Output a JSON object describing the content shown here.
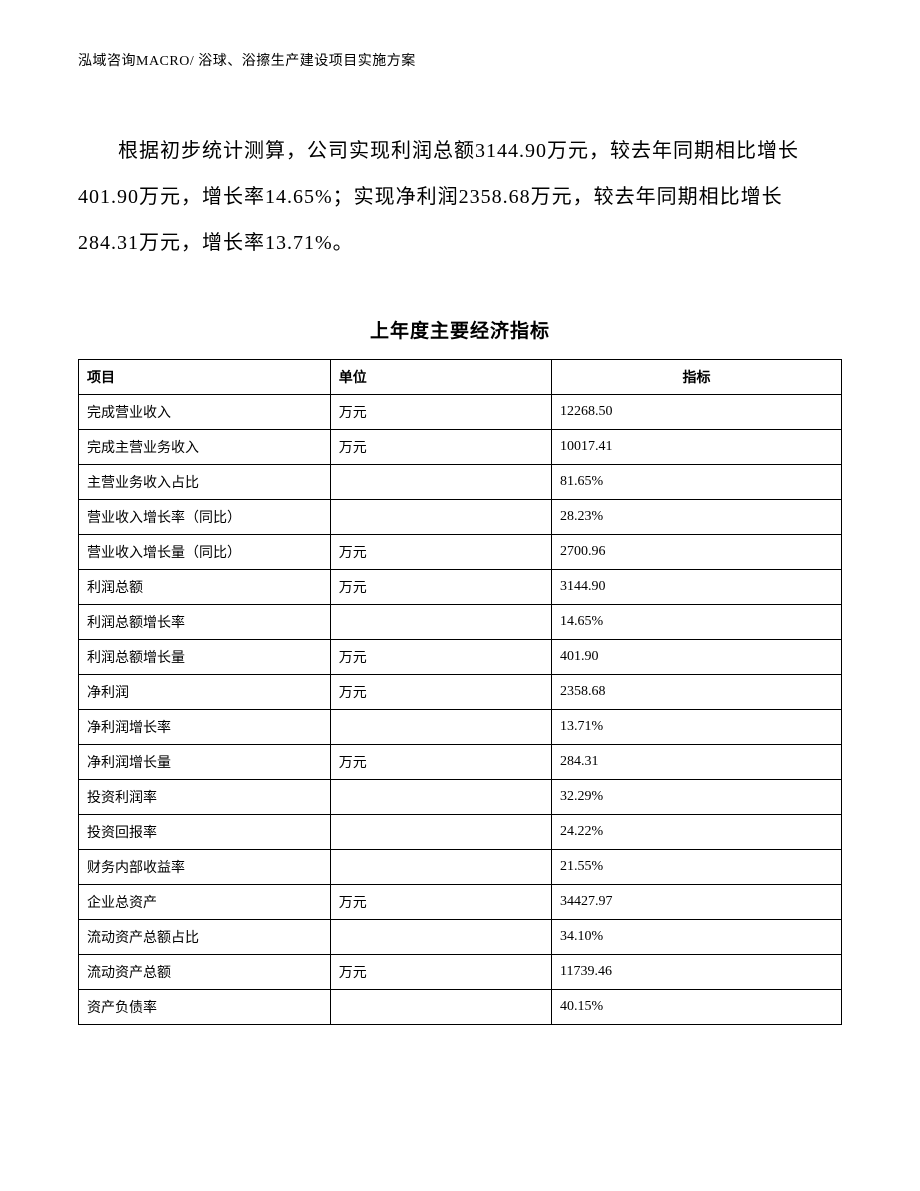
{
  "header": {
    "text": "泓域咨询MACRO/ 浴球、浴擦生产建设项目实施方案"
  },
  "paragraph": {
    "text": "根据初步统计测算，公司实现利润总额3144.90万元，较去年同期相比增长401.90万元，增长率14.65%；实现净利润2358.68万元，较去年同期相比增长284.31万元，增长率13.71%。"
  },
  "table": {
    "title": "上年度主要经济指标",
    "columns": [
      "项目",
      "单位",
      "指标"
    ],
    "rows": [
      [
        "完成营业收入",
        "万元",
        "12268.50"
      ],
      [
        "完成主营业务收入",
        "万元",
        "10017.41"
      ],
      [
        "主营业务收入占比",
        "",
        "81.65%"
      ],
      [
        "营业收入增长率（同比）",
        "",
        "28.23%"
      ],
      [
        "营业收入增长量（同比）",
        "万元",
        "2700.96"
      ],
      [
        "利润总额",
        "万元",
        "3144.90"
      ],
      [
        "利润总额增长率",
        "",
        "14.65%"
      ],
      [
        "利润总额增长量",
        "万元",
        "401.90"
      ],
      [
        "净利润",
        "万元",
        "2358.68"
      ],
      [
        "净利润增长率",
        "",
        "13.71%"
      ],
      [
        "净利润增长量",
        "万元",
        "284.31"
      ],
      [
        "投资利润率",
        "",
        "32.29%"
      ],
      [
        "投资回报率",
        "",
        "24.22%"
      ],
      [
        "财务内部收益率",
        "",
        "21.55%"
      ],
      [
        "企业总资产",
        "万元",
        "34427.97"
      ],
      [
        "流动资产总额占比",
        "",
        "34.10%"
      ],
      [
        "流动资产总额",
        "万元",
        "11739.46"
      ],
      [
        "资产负债率",
        "",
        "40.15%"
      ]
    ]
  }
}
